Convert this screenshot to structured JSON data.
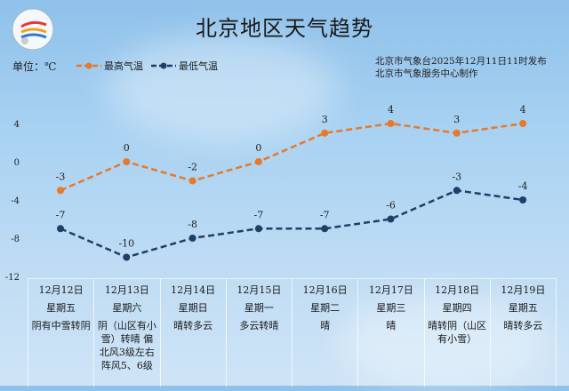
{
  "header": {
    "title": "北京地区天气趋势",
    "unit": "单位：℃",
    "publisher_line1": "北京市气象台2025年12月11日11时发布",
    "publisher_line2": "北京市气象服务中心制作"
  },
  "chart_data": {
    "type": "line",
    "title": "北京地区天气趋势",
    "ylabel": "单位：℃",
    "categories": [
      "12月12日",
      "12月13日",
      "12月14日",
      "12月15日",
      "12月16日",
      "12月17日",
      "12月18日",
      "12月19日"
    ],
    "ylim": [
      -12,
      4
    ],
    "yticks": [
      "4",
      "0",
      "-4",
      "-8",
      "-12"
    ],
    "legend_position": "top-left",
    "grid": false,
    "series": [
      {
        "name": "最高气温",
        "color": "#e8782a",
        "style": "dashed",
        "values": [
          -3,
          0,
          -2,
          0,
          3,
          4,
          3,
          4
        ]
      },
      {
        "name": "最低气温",
        "color": "#1f3f66",
        "style": "dashed",
        "values": [
          -7,
          -10,
          -8,
          -7,
          -7,
          -6,
          -3,
          -4
        ]
      }
    ]
  },
  "days": [
    {
      "date": "12月12日",
      "weekday": "星期五",
      "weather": "阴有中雪转阴"
    },
    {
      "date": "12月13日",
      "weekday": "星期六",
      "weather": "阴（山区有小雪）转晴 偏北风3级左右 阵风5、6级"
    },
    {
      "date": "12月14日",
      "weekday": "星期日",
      "weather": "晴转多云"
    },
    {
      "date": "12月15日",
      "weekday": "星期一",
      "weather": "多云转晴"
    },
    {
      "date": "12月16日",
      "weekday": "星期二",
      "weather": "晴"
    },
    {
      "date": "12月17日",
      "weekday": "星期三",
      "weather": "晴"
    },
    {
      "date": "12月18日",
      "weekday": "星期四",
      "weather": "晴转阴（山区有小雪）"
    },
    {
      "date": "12月19日",
      "weekday": "星期五",
      "weather": "晴转多云"
    }
  ]
}
